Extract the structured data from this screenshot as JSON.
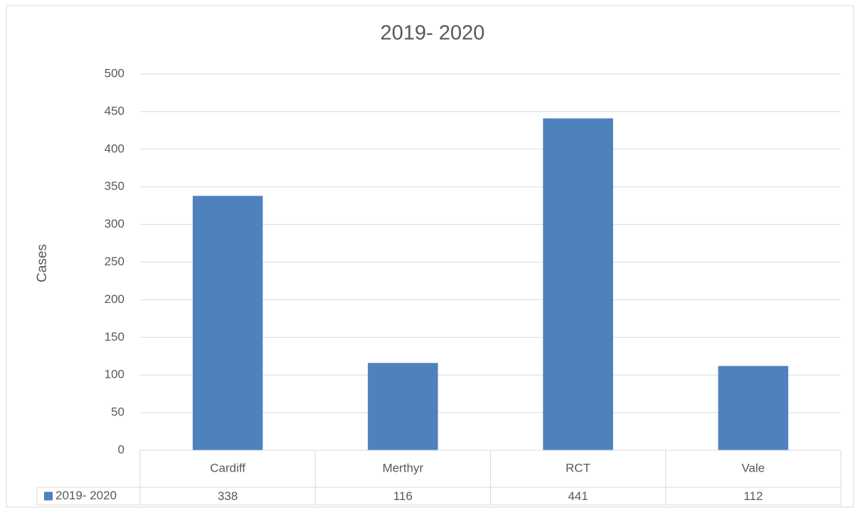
{
  "chart_data": {
    "type": "bar",
    "title": "2019- 2020",
    "y_label": "Cases",
    "categories": [
      "Cardiff",
      "Merthyr",
      "RCT",
      "Vale"
    ],
    "series": [
      {
        "name": "2019- 2020",
        "color": "#4f81bd",
        "values": [
          338,
          116,
          441,
          112
        ]
      }
    ],
    "ylim": [
      0,
      500
    ],
    "yticks": [
      0,
      50,
      100,
      150,
      200,
      250,
      300,
      350,
      400,
      450,
      500
    ],
    "grid": true,
    "legend": "data-table"
  }
}
